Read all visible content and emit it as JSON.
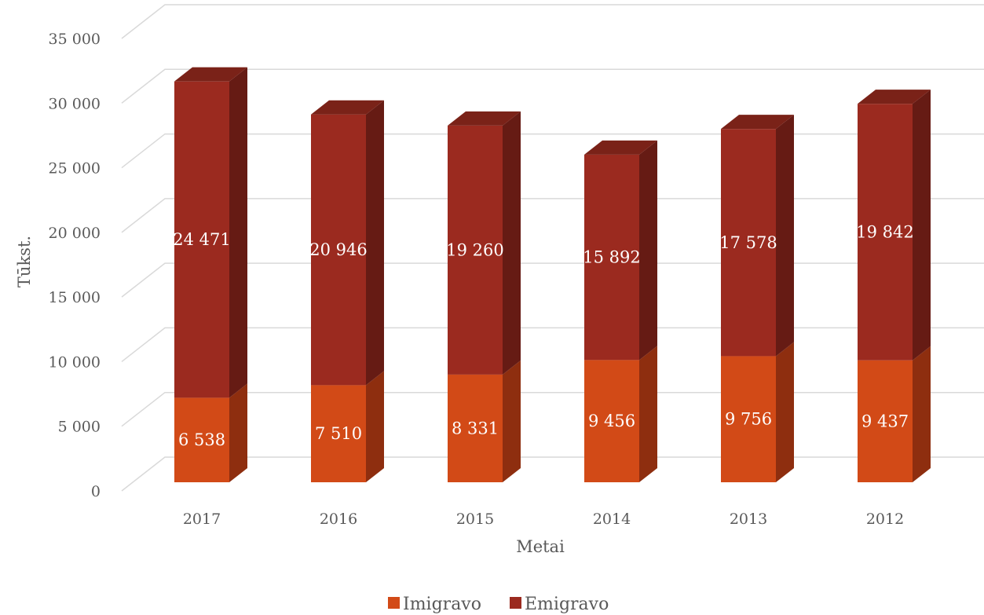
{
  "chart_data": {
    "type": "bar",
    "stacked": true,
    "three_d": true,
    "categories": [
      "2017",
      "2016",
      "2015",
      "2014",
      "2013",
      "2012"
    ],
    "series": [
      {
        "name": "Imigravo",
        "values": [
          6538,
          7510,
          8331,
          9456,
          9756,
          9437
        ],
        "labels": [
          "6 538",
          "7 510",
          "8 331",
          "9 456",
          "9 756",
          "9 437"
        ]
      },
      {
        "name": "Emigravo",
        "values": [
          24471,
          20946,
          19260,
          15892,
          17578,
          19842
        ],
        "labels": [
          "24 471",
          "20 946",
          "19 260",
          "15 892",
          "17 578",
          "19 842"
        ]
      }
    ],
    "xlabel": "Metai",
    "ylabel": "Tūkst.",
    "ylim": [
      0,
      35000
    ],
    "yticks": [
      0,
      5000,
      10000,
      15000,
      20000,
      25000,
      30000,
      35000
    ],
    "ytick_labels": [
      "0",
      "5 000",
      "10 000",
      "15 000",
      "20 000",
      "25 000",
      "30 000",
      "35 000"
    ],
    "grid": true,
    "legend_position": "bottom"
  },
  "colors": {
    "Imigravo": {
      "front": "#d24a17",
      "side": "#8e2e0f",
      "top": "#b23e12"
    },
    "Emigravo": {
      "front": "#9b2a1f",
      "side": "#661b14",
      "top": "#7a2218"
    },
    "grid": "#d9d9d9"
  }
}
